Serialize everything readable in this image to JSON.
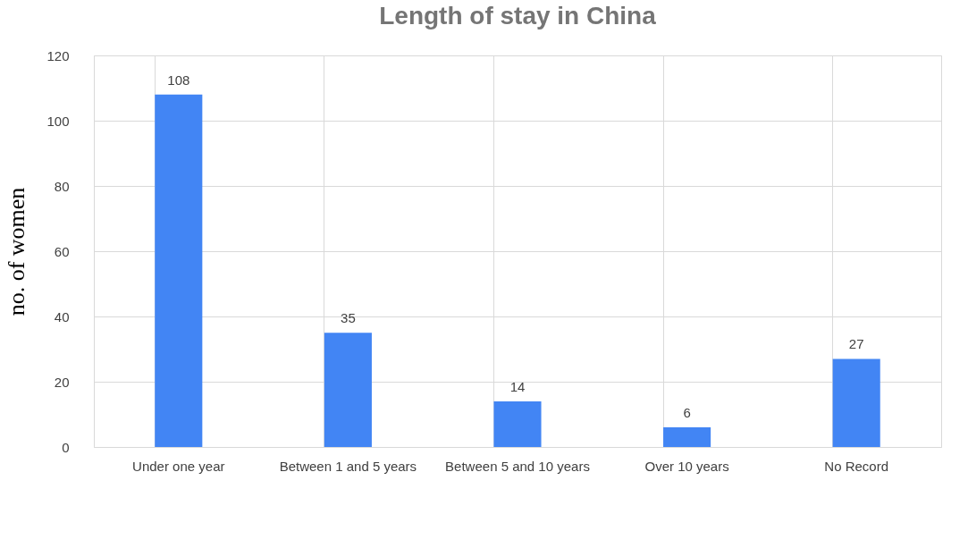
{
  "chart_data": {
    "type": "bar",
    "title": "Length of stay in China",
    "ylabel": "no. of women",
    "categories": [
      "Under one year",
      "Between 1 and 5 years",
      "Between 5 and 10 years",
      "Over 10 years",
      "No Record"
    ],
    "values": [
      108,
      35,
      14,
      6,
      27
    ],
    "color": "#4285f4",
    "ylim": [
      0,
      120
    ],
    "yticks": [
      0,
      20,
      40,
      60,
      80,
      100,
      120
    ],
    "grid": true,
    "data_labels": true
  }
}
